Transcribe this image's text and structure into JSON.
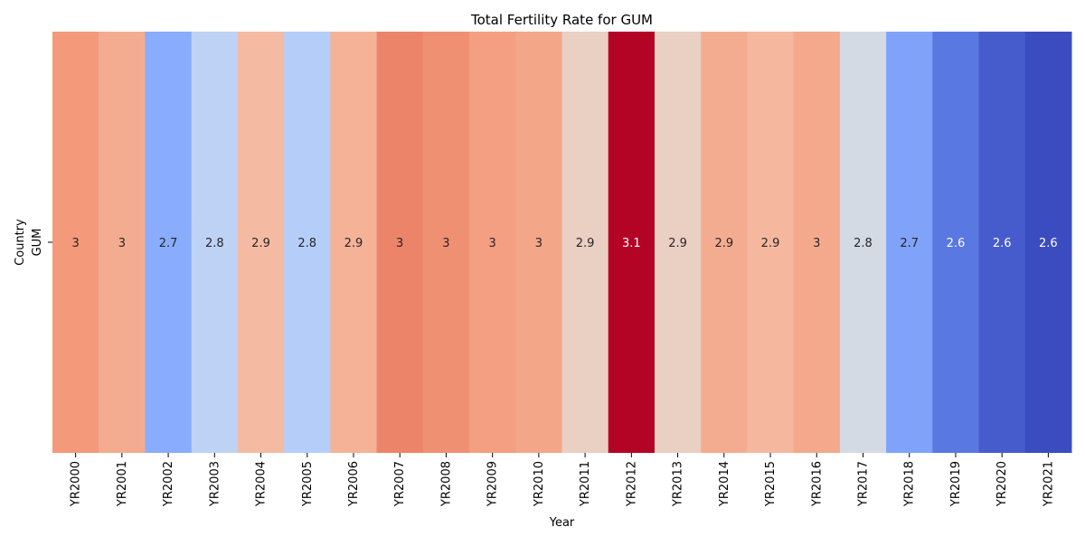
{
  "chart_data": {
    "type": "heatmap",
    "title": "Total Fertility Rate for GUM",
    "xlabel": "Year",
    "ylabel": "Country",
    "rows": [
      "GUM"
    ],
    "columns": [
      "YR2000",
      "YR2001",
      "YR2002",
      "YR2003",
      "YR2004",
      "YR2005",
      "YR2006",
      "YR2007",
      "YR2008",
      "YR2009",
      "YR2010",
      "YR2011",
      "YR2012",
      "YR2013",
      "YR2014",
      "YR2015",
      "YR2016",
      "YR2017",
      "YR2018",
      "YR2019",
      "YR2020",
      "YR2021"
    ],
    "annotations": [
      "3",
      "3",
      "2.7",
      "2.8",
      "2.9",
      "2.8",
      "2.9",
      "3",
      "3",
      "3",
      "3",
      "2.9",
      "3.1",
      "2.9",
      "2.9",
      "2.9",
      "3",
      "2.8",
      "2.7",
      "2.6",
      "2.6",
      "2.6"
    ],
    "values": [
      [
        2.985,
        2.955,
        2.705,
        2.79,
        2.93,
        2.775,
        2.945,
        3.01,
        2.995,
        2.975,
        2.965,
        2.885,
        3.12,
        2.885,
        2.955,
        2.935,
        2.96,
        2.83,
        2.69,
        2.63,
        2.595,
        2.575
      ]
    ],
    "colormap": "coolwarm",
    "colors": {
      "cold": "#3b4cc0",
      "mid": "#dddddd",
      "warm": "#b40426"
    },
    "annotation_text_colors": {
      "dark": "#262626",
      "light": "#ffffff"
    },
    "colorbar": false,
    "grid": false
  }
}
